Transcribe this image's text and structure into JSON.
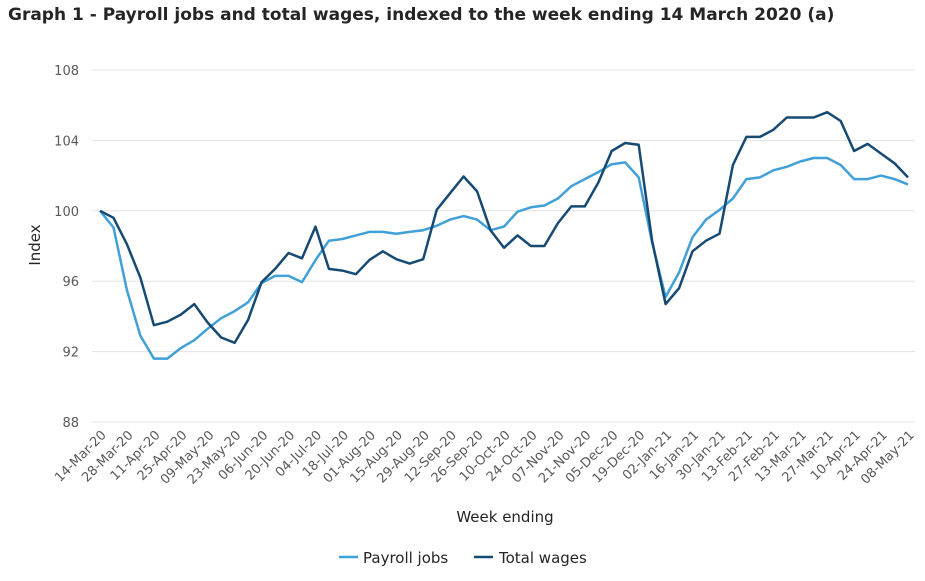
{
  "chart_data": {
    "type": "line",
    "title": "Graph 1 - Payroll jobs and total wages, indexed to the week ending 14 March 2020 (a)",
    "xlabel": "Week ending",
    "ylabel": "Index",
    "ylim": [
      88,
      108
    ],
    "y_ticks": [
      88,
      92,
      96,
      100,
      104,
      108
    ],
    "grid": "horizontal",
    "legend": "bottom",
    "x_tick_labels": [
      "14-Mar-20",
      "28-Mar-20",
      "11-Apr-20",
      "25-Apr-20",
      "09-May-20",
      "23-May-20",
      "06-Jun-20",
      "20-Jun-20",
      "04-Jul-20",
      "18-Jul-20",
      "01-Aug-20",
      "15-Aug-20",
      "29-Aug-20",
      "12-Sep-20",
      "26-Sep-20",
      "10-Oct-20",
      "24-Oct-20",
      "07-Nov-20",
      "21-Nov-20",
      "05-Dec-20",
      "19-Dec-20",
      "02-Jan-21",
      "16-Jan-21",
      "30-Jan-21",
      "13-Feb-21",
      "27-Feb-21",
      "13-Mar-21",
      "27-Mar-21",
      "10-Apr-21",
      "24-Apr-21",
      "08-May-21"
    ],
    "series": [
      {
        "name": "Payroll jobs",
        "color": "#41a0d8",
        "values": [
          100.0,
          99.05,
          95.5,
          92.9,
          91.6,
          91.6,
          92.2,
          92.65,
          93.3,
          93.9,
          94.3,
          94.8,
          95.9,
          96.3,
          96.3,
          95.95,
          97.2,
          98.3,
          98.4,
          98.6,
          98.8,
          98.8,
          98.7,
          98.8,
          98.9,
          99.15,
          99.5,
          99.7,
          99.5,
          98.9,
          99.1,
          99.95,
          100.2,
          100.3,
          100.7,
          101.4,
          101.8,
          102.2,
          102.65,
          102.75,
          101.9,
          98.2,
          95.1,
          96.5,
          98.5,
          99.5,
          100.05,
          100.7,
          101.8,
          101.9,
          102.3,
          102.5,
          102.8,
          103.0,
          103.0,
          102.6,
          101.8,
          101.8,
          102.0,
          101.8,
          101.5
        ]
      },
      {
        "name": "Total wages",
        "color": "#174a72",
        "values": [
          100.0,
          99.6,
          98.1,
          96.2,
          93.5,
          93.7,
          94.1,
          94.7,
          93.65,
          92.8,
          92.5,
          93.8,
          95.95,
          96.7,
          97.6,
          97.3,
          99.1,
          96.7,
          96.6,
          96.4,
          97.2,
          97.7,
          97.25,
          97.0,
          97.25,
          100.05,
          101.0,
          101.95,
          101.1,
          98.9,
          97.9,
          98.6,
          98.0,
          98.0,
          99.3,
          100.25,
          100.25,
          101.6,
          103.4,
          103.85,
          103.75,
          98.3,
          94.7,
          95.6,
          97.7,
          98.3,
          98.7,
          102.6,
          104.2,
          104.2,
          104.6,
          105.3,
          105.3,
          105.3,
          105.6,
          105.1,
          103.4,
          103.8,
          103.25,
          102.7,
          101.9
        ]
      }
    ]
  }
}
